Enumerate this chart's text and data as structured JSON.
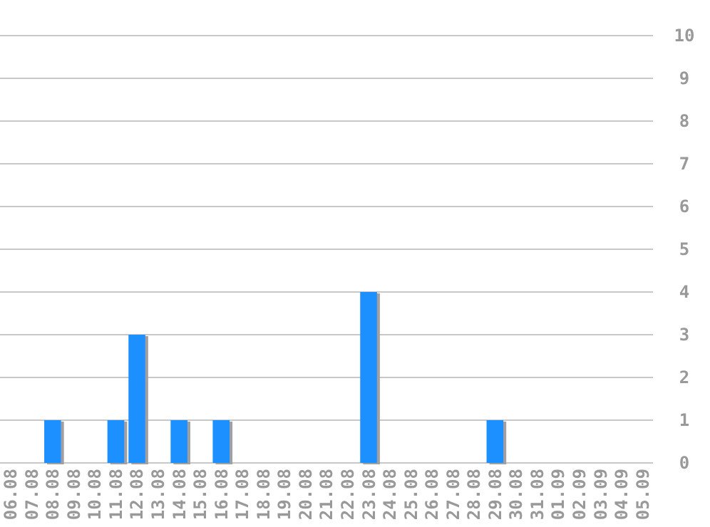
{
  "chart_data": {
    "type": "bar",
    "categories": [
      "06.08",
      "07.08",
      "08.08",
      "09.08",
      "10.08",
      "11.08",
      "12.08",
      "13.08",
      "14.08",
      "15.08",
      "16.08",
      "17.08",
      "18.08",
      "19.08",
      "20.08",
      "21.08",
      "22.08",
      "23.08",
      "24.08",
      "25.08",
      "26.08",
      "27.08",
      "28.08",
      "29.08",
      "30.08",
      "31.08",
      "01.09",
      "02.09",
      "03.09",
      "04.09",
      "05.09"
    ],
    "values": [
      0,
      0,
      1,
      0,
      0,
      1,
      3,
      0,
      1,
      0,
      1,
      0,
      0,
      0,
      0,
      0,
      0,
      4,
      0,
      0,
      0,
      0,
      0,
      1,
      0,
      0,
      0,
      0,
      0,
      0,
      0
    ],
    "color": "#1e90ff",
    "ylim": [
      0,
      10
    ],
    "yticks": [
      0,
      1,
      2,
      3,
      4,
      5,
      6,
      7,
      8,
      9,
      10
    ],
    "grid": "y"
  }
}
